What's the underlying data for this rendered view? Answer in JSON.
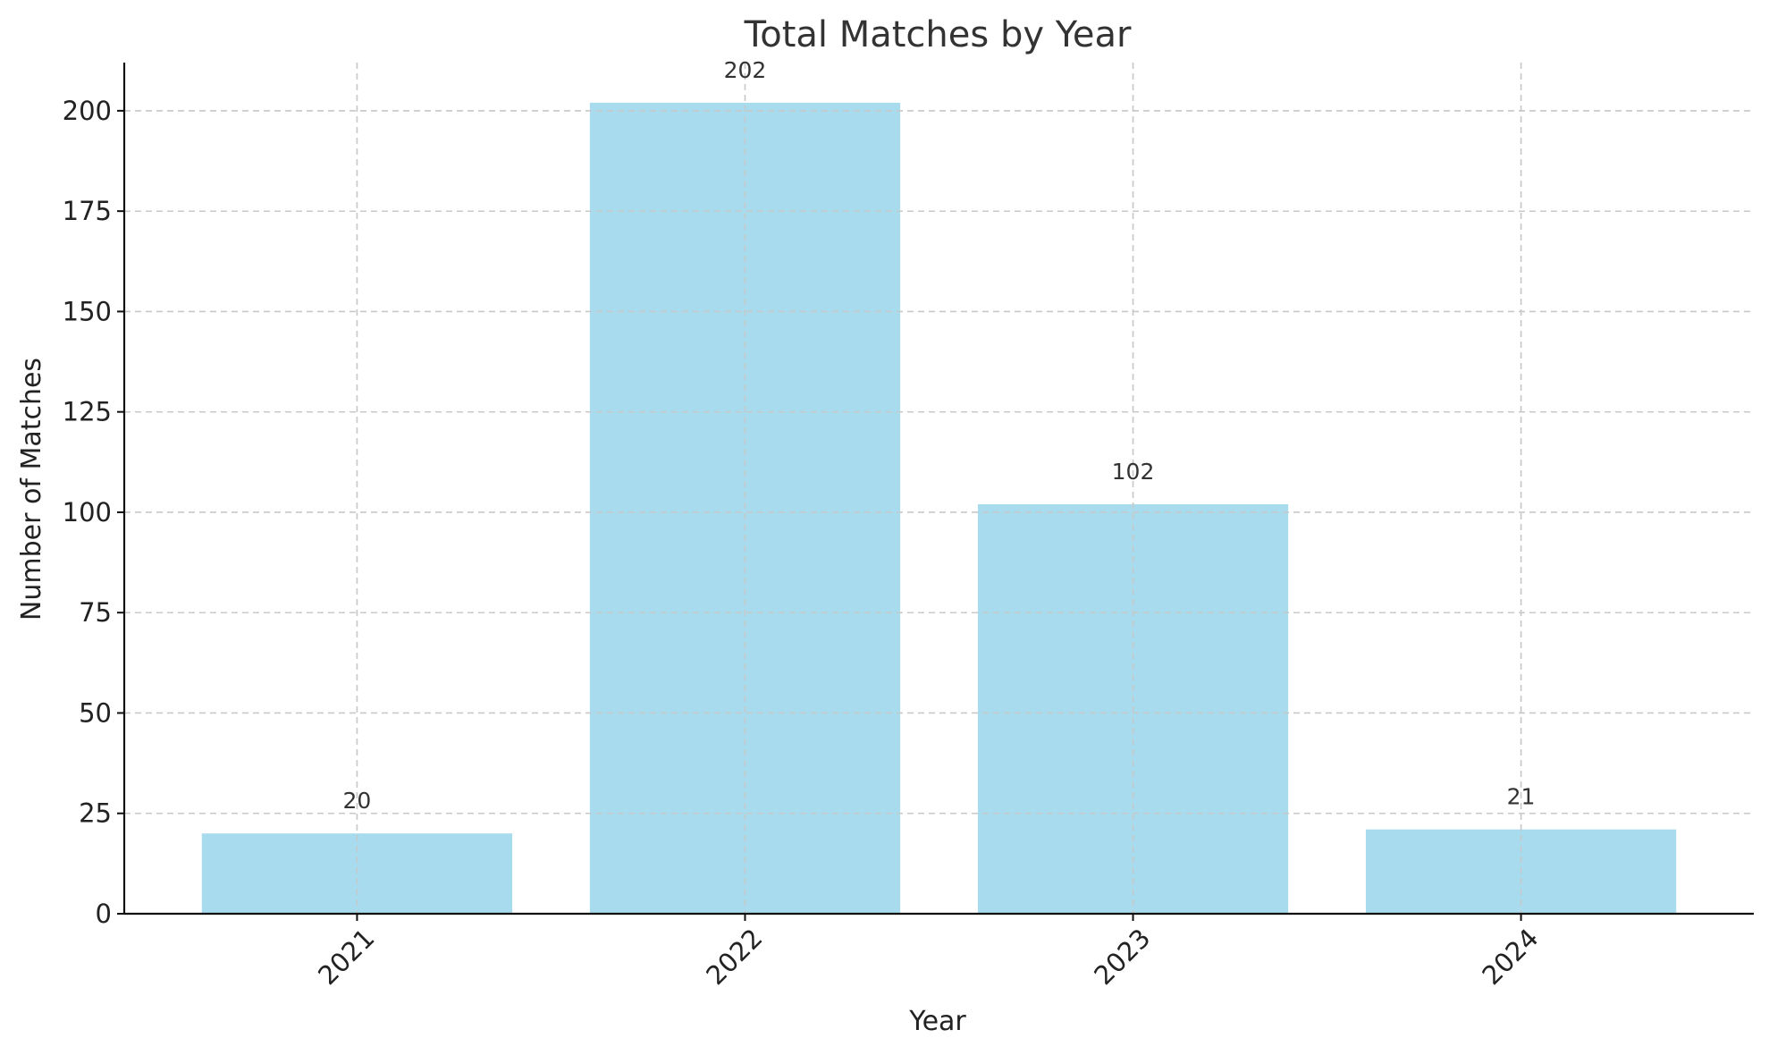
{
  "chart_data": {
    "type": "bar",
    "title": "Total Matches by Year",
    "xlabel": "Year",
    "ylabel": "Number of Matches",
    "categories": [
      "2021",
      "2022",
      "2023",
      "2024"
    ],
    "values": [
      20,
      202,
      102,
      21
    ],
    "ylim": [
      0,
      212
    ],
    "yticks": [
      0,
      25,
      50,
      75,
      100,
      125,
      150,
      175,
      200
    ],
    "bar_color": "#a8dbed",
    "grid": true,
    "x_tick_rotation_deg": 45,
    "data_labels": true
  }
}
